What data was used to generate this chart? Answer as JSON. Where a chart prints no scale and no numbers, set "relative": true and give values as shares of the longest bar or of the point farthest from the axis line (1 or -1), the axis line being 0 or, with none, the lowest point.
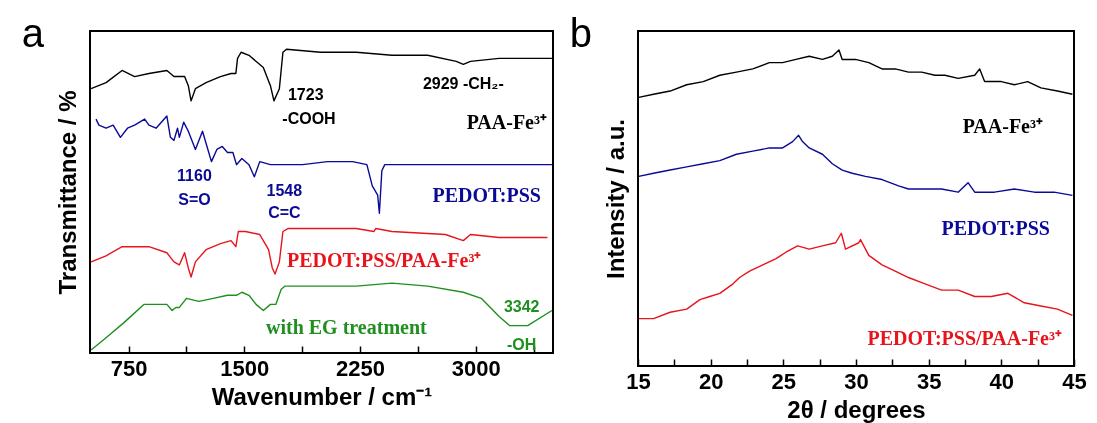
{
  "chart_data": [
    {
      "type": "line",
      "title": "a",
      "xlabel": "Wavenumber / cm⁻¹",
      "ylabel": "Transmittance / %",
      "relative": true,
      "tick_labels": "x",
      "xlim": [
        500,
        3500
      ],
      "xticks": [
        750,
        {
          "value": 1125,
          "label": null
        },
        1500,
        {
          "value": 1875,
          "label": null
        },
        2250,
        {
          "value": 2625,
          "label": null
        },
        3000,
        {
          "value": 3375,
          "label": null
        }
      ],
      "series": [
        {
          "name": "PAA-Fe³⁺",
          "color": "#000000",
          "x": [
            507,
            604,
            708,
            789,
            882,
            998,
            1044,
            1113,
            1137,
            1155,
            1183,
            1252,
            1345,
            1414,
            1445,
            1456,
            1479,
            1530,
            1623,
            1669,
            1692,
            1727,
            1750,
            1773,
            1993,
            2225,
            2456,
            2688,
            2873,
            2919,
            2965,
            3151,
            3493
          ],
          "values": [
            0.87,
            0.89,
            0.93,
            0.91,
            0.92,
            0.93,
            0.91,
            0.91,
            0.88,
            0.83,
            0.87,
            0.89,
            0.91,
            0.92,
            0.92,
            0.97,
            0.99,
            0.98,
            0.94,
            0.88,
            0.83,
            0.87,
            0.99,
            1.0,
            0.99,
            0.99,
            0.98,
            0.98,
            0.96,
            0.95,
            0.96,
            0.97,
            0.97
          ]
        },
        {
          "name": "PEDOT:PSS",
          "color": "#0a0a96",
          "x": [
            539,
            558,
            604,
            650,
            697,
            743,
            789,
            854,
            882,
            928,
            998,
            1021,
            1044,
            1067,
            1079,
            1107,
            1137,
            1183,
            1229,
            1287,
            1322,
            1357,
            1391,
            1426,
            1449,
            1484,
            1530,
            1565,
            1600,
            1669,
            1762,
            1877,
            2039,
            2202,
            2294,
            2329,
            2364,
            2375,
            2391,
            2410,
            2688,
            3151,
            3493
          ],
          "values": [
            0.77,
            0.75,
            0.74,
            0.75,
            0.71,
            0.74,
            0.75,
            0.77,
            0.75,
            0.74,
            0.78,
            0.71,
            0.7,
            0.74,
            0.71,
            0.76,
            0.73,
            0.67,
            0.73,
            0.63,
            0.67,
            0.68,
            0.66,
            0.66,
            0.62,
            0.64,
            0.62,
            0.58,
            0.63,
            0.62,
            0.62,
            0.62,
            0.63,
            0.63,
            0.62,
            0.55,
            0.52,
            0.46,
            0.6,
            0.62,
            0.62,
            0.62,
            0.62
          ]
        },
        {
          "name": "PEDOT:PSS/PAA-Fe³⁺",
          "color": "#e8141c",
          "x": [
            507,
            604,
            708,
            789,
            882,
            998,
            1044,
            1079,
            1113,
            1137,
            1155,
            1183,
            1252,
            1345,
            1414,
            1445,
            1461,
            1507,
            1600,
            1657,
            1681,
            1699,
            1727,
            1750,
            1785,
            2225,
            2340,
            2352,
            2456,
            2803,
            2919,
            2965,
            3151,
            3464
          ],
          "values": [
            0.3,
            0.32,
            0.35,
            0.35,
            0.35,
            0.33,
            0.3,
            0.29,
            0.33,
            0.28,
            0.25,
            0.3,
            0.34,
            0.36,
            0.37,
            0.35,
            0.4,
            0.4,
            0.39,
            0.34,
            0.28,
            0.26,
            0.3,
            0.4,
            0.41,
            0.41,
            0.4,
            0.41,
            0.4,
            0.39,
            0.37,
            0.39,
            0.38,
            0.38
          ]
        },
        {
          "name": "with EG treatment",
          "color": "#1f8f1f",
          "x": [
            507,
            604,
            720,
            849,
            928,
            998,
            1032,
            1056,
            1079,
            1125,
            1206,
            1299,
            1391,
            1449,
            1484,
            1530,
            1576,
            1623,
            1669,
            1704,
            1739,
            1762,
            2225,
            2456,
            2688,
            2919,
            3035,
            3151,
            3220,
            3336,
            3493
          ],
          "values": [
            0.01,
            0.05,
            0.1,
            0.16,
            0.16,
            0.16,
            0.14,
            0.15,
            0.15,
            0.18,
            0.17,
            0.18,
            0.19,
            0.19,
            0.2,
            0.19,
            0.16,
            0.14,
            0.16,
            0.16,
            0.21,
            0.22,
            0.22,
            0.23,
            0.22,
            0.2,
            0.18,
            0.12,
            0.09,
            0.09,
            0.14
          ]
        }
      ],
      "annotations": [
        {
          "text": "1723",
          "x": 1692,
          "y": 0.83
        },
        {
          "text": "-COOH",
          "x": 1692,
          "y": 0.83
        },
        {
          "text": "2929  -CH₂-",
          "x": 2919,
          "y": 0.95
        },
        {
          "text": "1160",
          "x": 1287,
          "y": 0.63
        },
        {
          "text": "S=O",
          "x": 1287,
          "y": 0.63
        },
        {
          "text": "1548",
          "x": 1565,
          "y": 0.58
        },
        {
          "text": "C=C",
          "x": 1565,
          "y": 0.58
        },
        {
          "text": "3342",
          "x": 3336,
          "y": 0.09
        },
        {
          "text": "-OH",
          "x": 3336,
          "y": 0.09
        }
      ]
    },
    {
      "type": "line",
      "title": "b",
      "xlabel": "2θ / degrees",
      "ylabel": "Intensity / a.u.",
      "relative": true,
      "tick_labels": "x",
      "xlim": [
        15,
        45
      ],
      "xticks": [
        15,
        {
          "value": 17.5,
          "label": null
        },
        20,
        {
          "value": 22.5,
          "label": null
        },
        25,
        {
          "value": 27.5,
          "label": null
        },
        30,
        {
          "value": 32.5,
          "label": null
        },
        35,
        {
          "value": 37.5,
          "label": null
        },
        40,
        {
          "value": 42.5,
          "label": null
        },
        45
      ],
      "series": [
        {
          "name": "PAA-Fe³⁺",
          "color": "#000000",
          "x": [
            15.05,
            16.07,
            17.21,
            18.35,
            19.49,
            20.63,
            21.77,
            22.9,
            24.04,
            24.95,
            25.87,
            26.78,
            27.69,
            28.37,
            28.83,
            29.05,
            29.96,
            30.88,
            31.79,
            32.7,
            33.61,
            34.52,
            35.43,
            36.12,
            37.03,
            38.17,
            38.51,
            38.85,
            39.99,
            40.9,
            41.81,
            42.72,
            43.86,
            44.89
          ],
          "values": [
            0.85,
            0.86,
            0.87,
            0.89,
            0.9,
            0.92,
            0.93,
            0.94,
            0.96,
            0.96,
            0.97,
            0.98,
            0.97,
            0.98,
            1.0,
            0.97,
            0.97,
            0.96,
            0.94,
            0.94,
            0.93,
            0.93,
            0.92,
            0.92,
            0.91,
            0.92,
            0.94,
            0.9,
            0.9,
            0.89,
            0.9,
            0.88,
            0.87,
            0.86
          ]
        },
        {
          "name": "PEDOT:PSS",
          "color": "#0a0a96",
          "x": [
            15.05,
            16.07,
            17.21,
            18.35,
            19.49,
            20.63,
            21.77,
            22.9,
            24.04,
            24.95,
            25.64,
            26.05,
            26.32,
            26.78,
            27.69,
            28.37,
            29.05,
            29.74,
            30.65,
            31.79,
            32.93,
            33.61,
            34.75,
            35.89,
            37.03,
            37.71,
            38.17,
            39.53,
            40.9,
            42.27,
            43.63,
            44.89
          ],
          "values": [
            0.6,
            0.61,
            0.62,
            0.63,
            0.64,
            0.65,
            0.67,
            0.68,
            0.69,
            0.69,
            0.71,
            0.73,
            0.71,
            0.69,
            0.67,
            0.64,
            0.62,
            0.61,
            0.6,
            0.59,
            0.57,
            0.56,
            0.56,
            0.56,
            0.55,
            0.58,
            0.55,
            0.55,
            0.56,
            0.55,
            0.55,
            0.54
          ]
        },
        {
          "name": "PEDOT:PSS/PAA-Fe³⁺",
          "color": "#e8141c",
          "x": [
            15.05,
            16.07,
            17.21,
            18.35,
            19.26,
            19.94,
            20.63,
            21.54,
            21.99,
            22.68,
            23.59,
            24.5,
            25.18,
            25.98,
            26.78,
            27.69,
            28.6,
            28.99,
            29.28,
            30.19,
            30.31,
            30.88,
            31.79,
            32.7,
            33.61,
            34.75,
            35.89,
            37.03,
            38.17,
            39.31,
            40.45,
            41.58,
            42.72,
            43.86,
            44.89
          ],
          "values": [
            0.15,
            0.15,
            0.17,
            0.18,
            0.21,
            0.22,
            0.23,
            0.26,
            0.28,
            0.3,
            0.32,
            0.34,
            0.36,
            0.38,
            0.37,
            0.38,
            0.39,
            0.42,
            0.37,
            0.39,
            0.4,
            0.35,
            0.32,
            0.3,
            0.28,
            0.26,
            0.24,
            0.24,
            0.22,
            0.22,
            0.23,
            0.2,
            0.19,
            0.18,
            0.16
          ]
        }
      ]
    }
  ]
}
